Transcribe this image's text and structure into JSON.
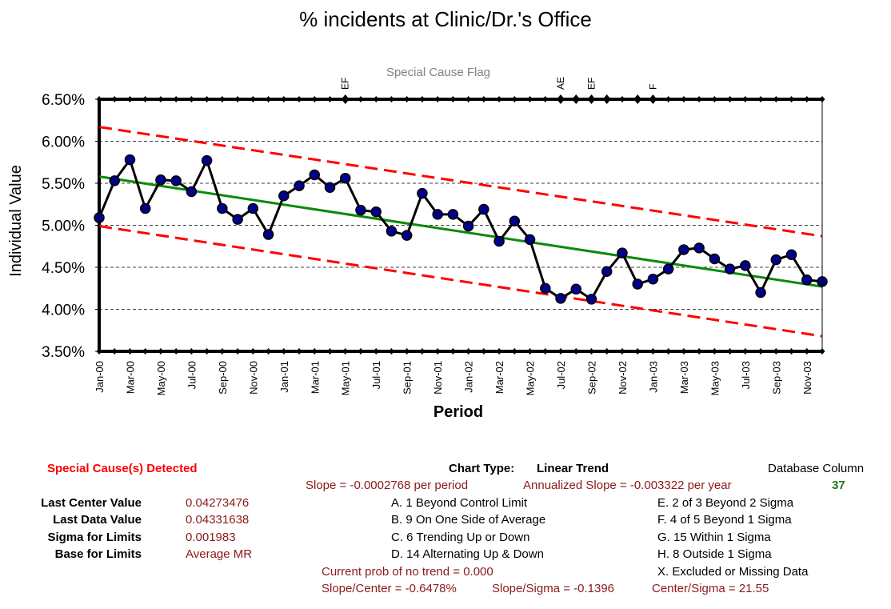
{
  "chart_data": {
    "type": "line",
    "title": "% incidents at Clinic/Dr.'s Office",
    "subtitle": "Special Cause Flag",
    "xlabel": "Period",
    "ylabel": "Individual Value",
    "ylim": [
      0.035,
      0.065
    ],
    "yticks": [
      "6.50%",
      "6.00%",
      "5.50%",
      "5.00%",
      "4.50%",
      "4.00%",
      "3.50%"
    ],
    "xtick_labels": [
      "Jan-00",
      "Mar-00",
      "May-00",
      "Jul-00",
      "Sep-00",
      "Nov-00",
      "Jan-01",
      "Mar-01",
      "May-01",
      "Jul-01",
      "Sep-01",
      "Nov-01",
      "Jan-02",
      "Mar-02",
      "May-02",
      "Jul-02",
      "Sep-02",
      "Nov-02",
      "Jan-03",
      "Mar-03",
      "May-03",
      "Jul-03",
      "Sep-03",
      "Nov-03"
    ],
    "grid": "horizontal dashed",
    "series": [
      {
        "name": "Individual Value",
        "color": "#000000",
        "marker_color": "#00008b",
        "x": [
          "Jan-00",
          "Feb-00",
          "Mar-00",
          "Apr-00",
          "May-00",
          "Jun-00",
          "Jul-00",
          "Aug-00",
          "Sep-00",
          "Oct-00",
          "Nov-00",
          "Dec-00",
          "Jan-01",
          "Feb-01",
          "Mar-01",
          "Apr-01",
          "May-01",
          "Jun-01",
          "Jul-01",
          "Aug-01",
          "Sep-01",
          "Oct-01",
          "Nov-01",
          "Dec-01",
          "Jan-02",
          "Feb-02",
          "Mar-02",
          "Apr-02",
          "May-02",
          "Jun-02",
          "Jul-02",
          "Aug-02",
          "Sep-02",
          "Oct-02",
          "Nov-02",
          "Dec-02",
          "Jan-03",
          "Feb-03",
          "Mar-03",
          "Apr-03",
          "May-03",
          "Jun-03",
          "Jul-03",
          "Aug-03",
          "Sep-03",
          "Oct-03",
          "Nov-03",
          "Dec-03"
        ],
        "values": [
          0.0509,
          0.0553,
          0.0578,
          0.052,
          0.0554,
          0.0553,
          0.054,
          0.0577,
          0.052,
          0.0507,
          0.052,
          0.0489,
          0.0535,
          0.0547,
          0.056,
          0.0545,
          0.0556,
          0.0518,
          0.0516,
          0.0493,
          0.0488,
          0.0538,
          0.0513,
          0.0513,
          0.0499,
          0.0519,
          0.0481,
          0.0505,
          0.0483,
          0.0425,
          0.0413,
          0.0424,
          0.0412,
          0.0445,
          0.0467,
          0.043,
          0.0436,
          0.0448,
          0.0471,
          0.0473,
          0.046,
          0.0448,
          0.0452,
          0.042,
          0.0459,
          0.0465,
          0.0435,
          0.0433
        ]
      },
      {
        "name": "Center Line",
        "color": "#0a8a0a",
        "start": 0.0558,
        "end": 0.0427
      },
      {
        "name": "Upper Control Limit",
        "color": "#ff0000",
        "start": 0.0617,
        "end": 0.0487
      },
      {
        "name": "Lower Control Limit",
        "color": "#ff0000",
        "start": 0.0499,
        "end": 0.0368
      }
    ],
    "flags": [
      {
        "period_index": 16,
        "label": "EF"
      },
      {
        "period_index": 30,
        "label": "AE"
      },
      {
        "period_index": 31,
        "label": ""
      },
      {
        "period_index": 32,
        "label": "EF"
      },
      {
        "period_index": 33,
        "label": ""
      },
      {
        "period_index": 35,
        "label": ""
      },
      {
        "period_index": 36,
        "label": "F"
      }
    ]
  },
  "summary": {
    "special_cause_detected": "Special Cause(s) Detected",
    "chart_type_label": "Chart Type:",
    "chart_type_value": "Linear Trend",
    "database_column_label": "Database Column",
    "database_column_value": "37",
    "slope": "Slope = -0.0002768 per period",
    "annualized_slope": "Annualized Slope = -0.003322 per year",
    "stats": [
      {
        "label": "Last Center Value",
        "value": "0.04273476"
      },
      {
        "label": "Last Data Value",
        "value": "0.04331638"
      },
      {
        "label": "Sigma for Limits",
        "value": "0.001983"
      },
      {
        "label": "Base for Limits",
        "value": "Average MR"
      }
    ],
    "rules_left": [
      "A.  1 Beyond Control Limit",
      "B.  9 On One Side of Average",
      "C.  6 Trending Up or Down",
      "D.  14 Alternating  Up & Down"
    ],
    "rules_right": [
      "E.  2 of 3 Beyond 2 Sigma",
      "F.  4 of 5 Beyond 1 Sigma",
      "G.  15 Within 1 Sigma",
      "H.  8 Outside 1 Sigma",
      "X.  Excluded or Missing Data"
    ],
    "prob_no_trend": "Current prob of no trend = 0.000",
    "slope_center": "Slope/Center = -0.6478%",
    "slope_sigma": "Slope/Sigma = -0.1396",
    "center_sigma": "Center/Sigma = 21.55"
  }
}
